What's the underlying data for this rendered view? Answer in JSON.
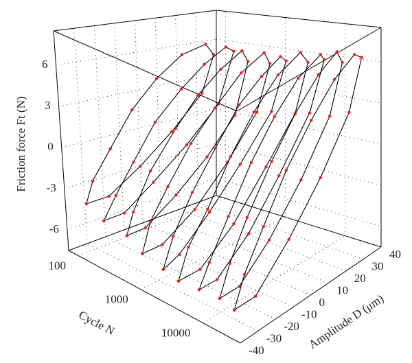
{
  "chart_data": {
    "type": "line3d",
    "zlabel": "Friction force Ft (N)",
    "xlabel": "Cycle N",
    "ylabel": "Amplitude D (μm)",
    "zlim": [
      -7.5,
      8.5
    ],
    "zticks": [
      -6,
      -3,
      0,
      3,
      6
    ],
    "xlim": [
      70,
      40000
    ],
    "xscale": "log",
    "xticks": [
      100,
      1000,
      10000
    ],
    "ylim": [
      -40,
      40
    ],
    "yticks": [
      -40,
      -30,
      -20,
      -10,
      0,
      10,
      20,
      30,
      40
    ],
    "grid": true,
    "line_color": "#000000",
    "marker_color": "#e8201c",
    "loops": [
      {
        "cycle": 100,
        "amplitude": [
          -34,
          -30,
          -20,
          -8,
          5,
          18,
          30,
          34,
          28,
          12,
          -5,
          -22,
          -34
        ],
        "force": [
          -4,
          -2.5,
          -0.5,
          2,
          4,
          5.5,
          6,
          5,
          2,
          -0.5,
          -2.5,
          -4,
          -4
        ]
      },
      {
        "cycle": 200,
        "amplitude": [
          -35,
          -28,
          -18,
          -6,
          8,
          20,
          31,
          35,
          27,
          10,
          -8,
          -24,
          -35
        ],
        "force": [
          -4.5,
          -3,
          -1,
          1.5,
          3.5,
          5,
          6,
          5.5,
          1.5,
          -1,
          -3,
          -4.5,
          -4.5
        ]
      },
      {
        "cycle": 400,
        "amplitude": [
          -33,
          -29,
          -19,
          -5,
          7,
          19,
          30,
          33,
          26,
          11,
          -6,
          -23,
          -33
        ],
        "force": [
          -5,
          -3.5,
          -1,
          1.5,
          3.5,
          5,
          6,
          5,
          1,
          -1.5,
          -3.5,
          -5,
          -5
        ]
      },
      {
        "cycle": 800,
        "amplitude": [
          -35,
          -30,
          -20,
          -7,
          6,
          20,
          32,
          35,
          28,
          12,
          -6,
          -24,
          -35
        ],
        "force": [
          -5.5,
          -3.5,
          -1.5,
          1,
          3,
          5,
          6,
          5,
          1.5,
          -1.5,
          -4,
          -5.5,
          -5.5
        ]
      },
      {
        "cycle": 1600,
        "amplitude": [
          -34,
          -28,
          -17,
          -4,
          9,
          21,
          31,
          34,
          26,
          9,
          -8,
          -25,
          -34
        ],
        "force": [
          -6,
          -4,
          -1.5,
          1,
          3.5,
          5,
          6,
          5.5,
          2,
          -1,
          -3.5,
          -5.5,
          -6
        ]
      },
      {
        "cycle": 3200,
        "amplitude": [
          -36,
          -30,
          -19,
          -6,
          7,
          20,
          32,
          36,
          29,
          13,
          -5,
          -24,
          -36
        ],
        "force": [
          -6,
          -4,
          -2,
          1,
          3.5,
          5.5,
          6.5,
          5.5,
          2,
          -1,
          -4,
          -6,
          -6
        ]
      },
      {
        "cycle": 6400,
        "amplitude": [
          -35,
          -29,
          -18,
          -5,
          8,
          21,
          33,
          35,
          27,
          10,
          -7,
          -25,
          -35
        ],
        "force": [
          -6,
          -4.5,
          -2,
          1,
          3.5,
          5.5,
          6.5,
          6,
          2.5,
          -1,
          -4,
          -6,
          -6
        ]
      },
      {
        "cycle": 12800,
        "amplitude": [
          -34,
          -28,
          -18,
          -4,
          9,
          22,
          32,
          35,
          28,
          12,
          -6,
          -23,
          -34
        ],
        "force": [
          -6,
          -4,
          -1.5,
          1.5,
          4,
          6,
          7,
          6,
          2.5,
          -1,
          -4,
          -6,
          -6
        ]
      },
      {
        "cycle": 25000,
        "amplitude": [
          -36,
          -30,
          -19,
          -6,
          8,
          21,
          32,
          36,
          29,
          13,
          -5,
          -24,
          -36
        ],
        "force": [
          -6,
          -4,
          -1.5,
          1.5,
          4,
          6,
          7,
          6.5,
          3,
          -0.5,
          -3.5,
          -6,
          -6
        ]
      }
    ]
  }
}
